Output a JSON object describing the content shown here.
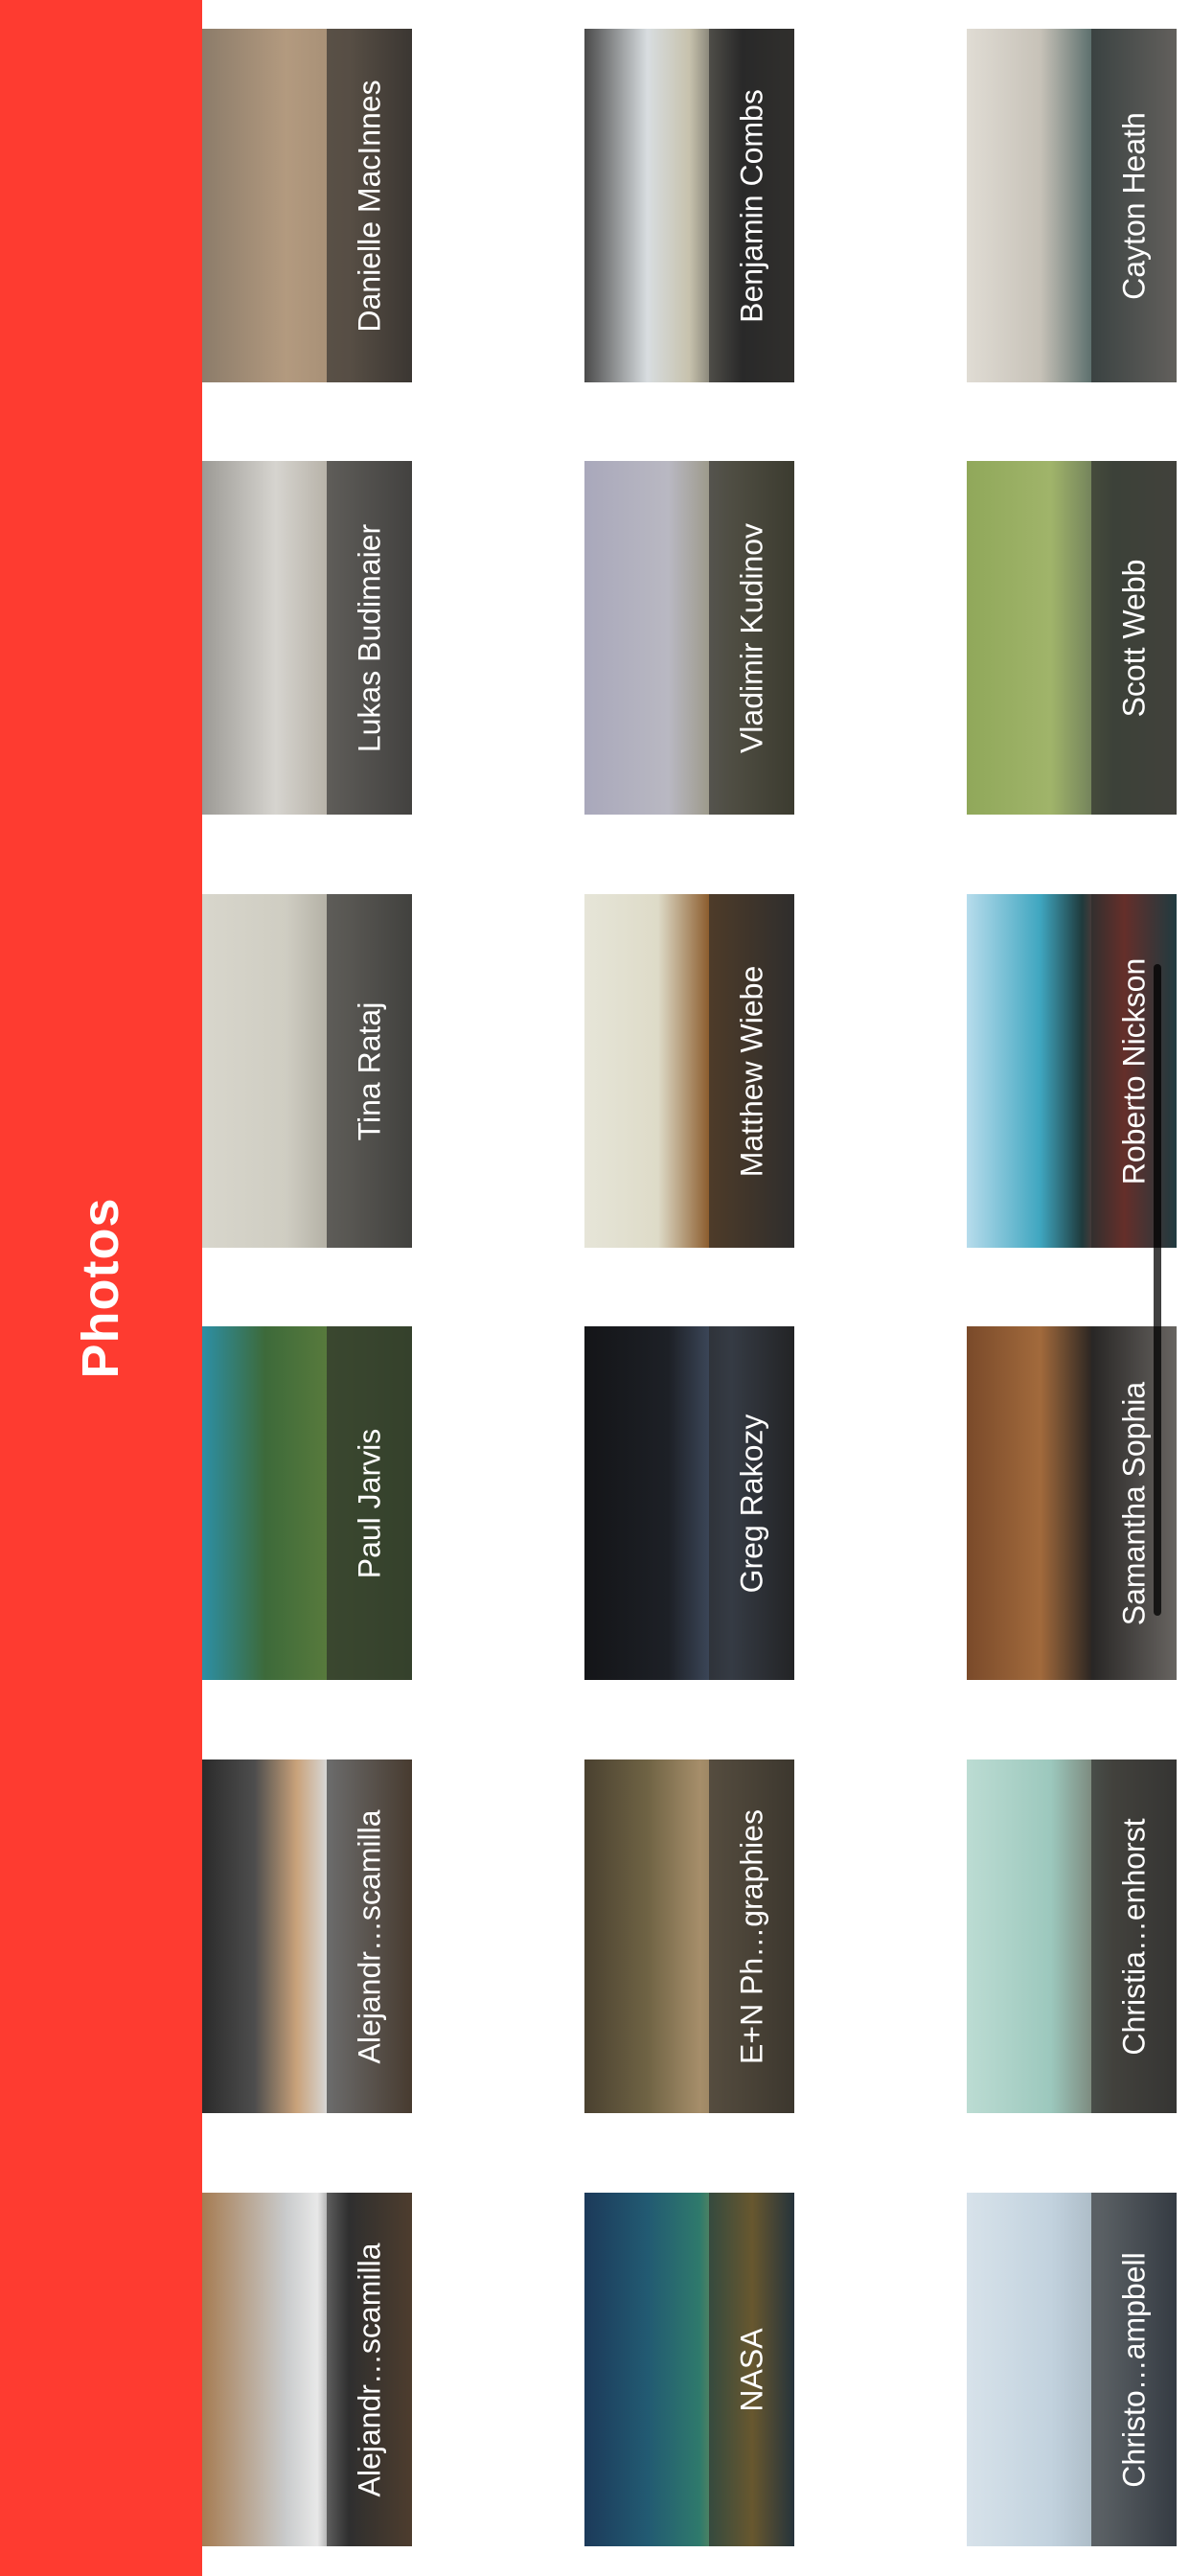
{
  "header": {
    "title": "Photos",
    "color": "#fe3b30"
  },
  "photos": [
    {
      "author": "Alejandr…scamilla"
    },
    {
      "author": "Alejandr…scamilla"
    },
    {
      "author": "Paul Jarvis"
    },
    {
      "author": "Tina Rataj"
    },
    {
      "author": "Lukas Budimaier"
    },
    {
      "author": "Danielle MacInnes"
    },
    {
      "author": "NASA"
    },
    {
      "author": "E+N Ph…graphies"
    },
    {
      "author": "Greg Rakozy"
    },
    {
      "author": "Matthew Wiebe"
    },
    {
      "author": "Vladimir Kudinov"
    },
    {
      "author": "Benjamin Combs"
    },
    {
      "author": "Christo…ampbell"
    },
    {
      "author": "Christia…enhorst"
    },
    {
      "author": "Samantha Sophia"
    },
    {
      "author": "Roberto Nickson"
    },
    {
      "author": "Scott Webb"
    },
    {
      "author": "Cayton Heath"
    }
  ]
}
